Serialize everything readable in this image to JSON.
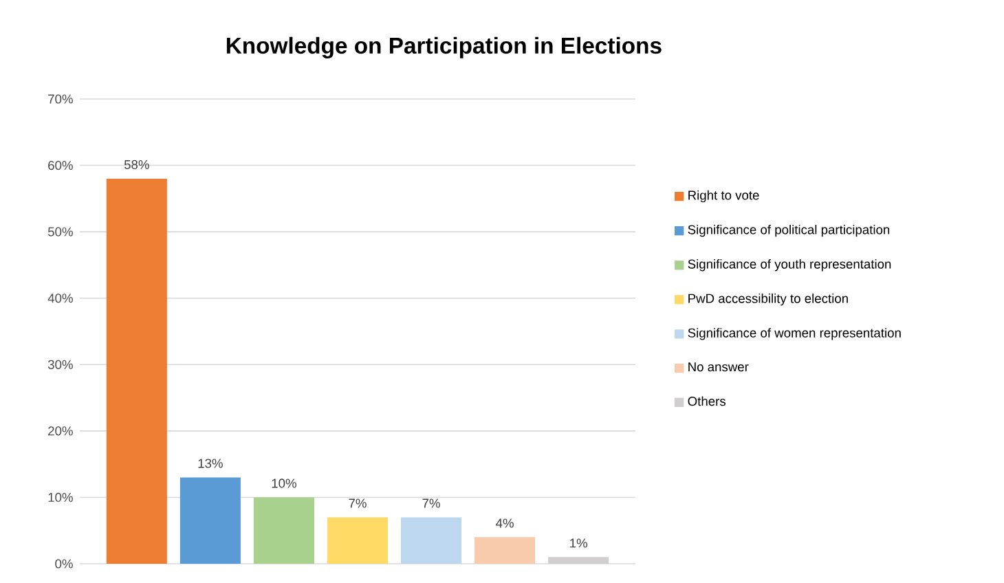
{
  "chart_data": {
    "type": "bar",
    "title": "Knowledge on Participation in Elections",
    "categories": [
      null
    ],
    "series": [
      {
        "name": "Right to vote",
        "color": "#ed7d31",
        "values": [
          58
        ],
        "value_labels": [
          "58%"
        ]
      },
      {
        "name": "Significance of political participation",
        "color": "#5b9bd5",
        "values": [
          13
        ],
        "value_labels": [
          "13%"
        ]
      },
      {
        "name": "Significance of youth representation",
        "color": "#a9d18e",
        "values": [
          10
        ],
        "value_labels": [
          "10%"
        ]
      },
      {
        "name": "PwD accessibility to election",
        "color": "#ffd966",
        "values": [
          7
        ],
        "value_labels": [
          "7%"
        ]
      },
      {
        "name": "Significance of women representation",
        "color": "#bdd7ee",
        "values": [
          7
        ],
        "value_labels": [
          "7%"
        ]
      },
      {
        "name": "No answer",
        "color": "#f8cbad",
        "values": [
          4
        ],
        "value_labels": [
          "4%"
        ]
      },
      {
        "name": "Others",
        "color": "#d0cece",
        "values": [
          1
        ],
        "value_labels": [
          "1%"
        ]
      }
    ],
    "ylim": [
      0,
      70
    ],
    "yticks": [
      {
        "value": 0,
        "label": "0%"
      },
      {
        "value": 10,
        "label": "10%"
      },
      {
        "value": 20,
        "label": "20%"
      },
      {
        "value": 30,
        "label": "30%"
      },
      {
        "value": 40,
        "label": "40%"
      },
      {
        "value": 50,
        "label": "50%"
      },
      {
        "value": 60,
        "label": "60%"
      },
      {
        "value": 70,
        "label": "70%"
      }
    ],
    "grid": "y",
    "legend": "right",
    "tick_labels": "y"
  }
}
